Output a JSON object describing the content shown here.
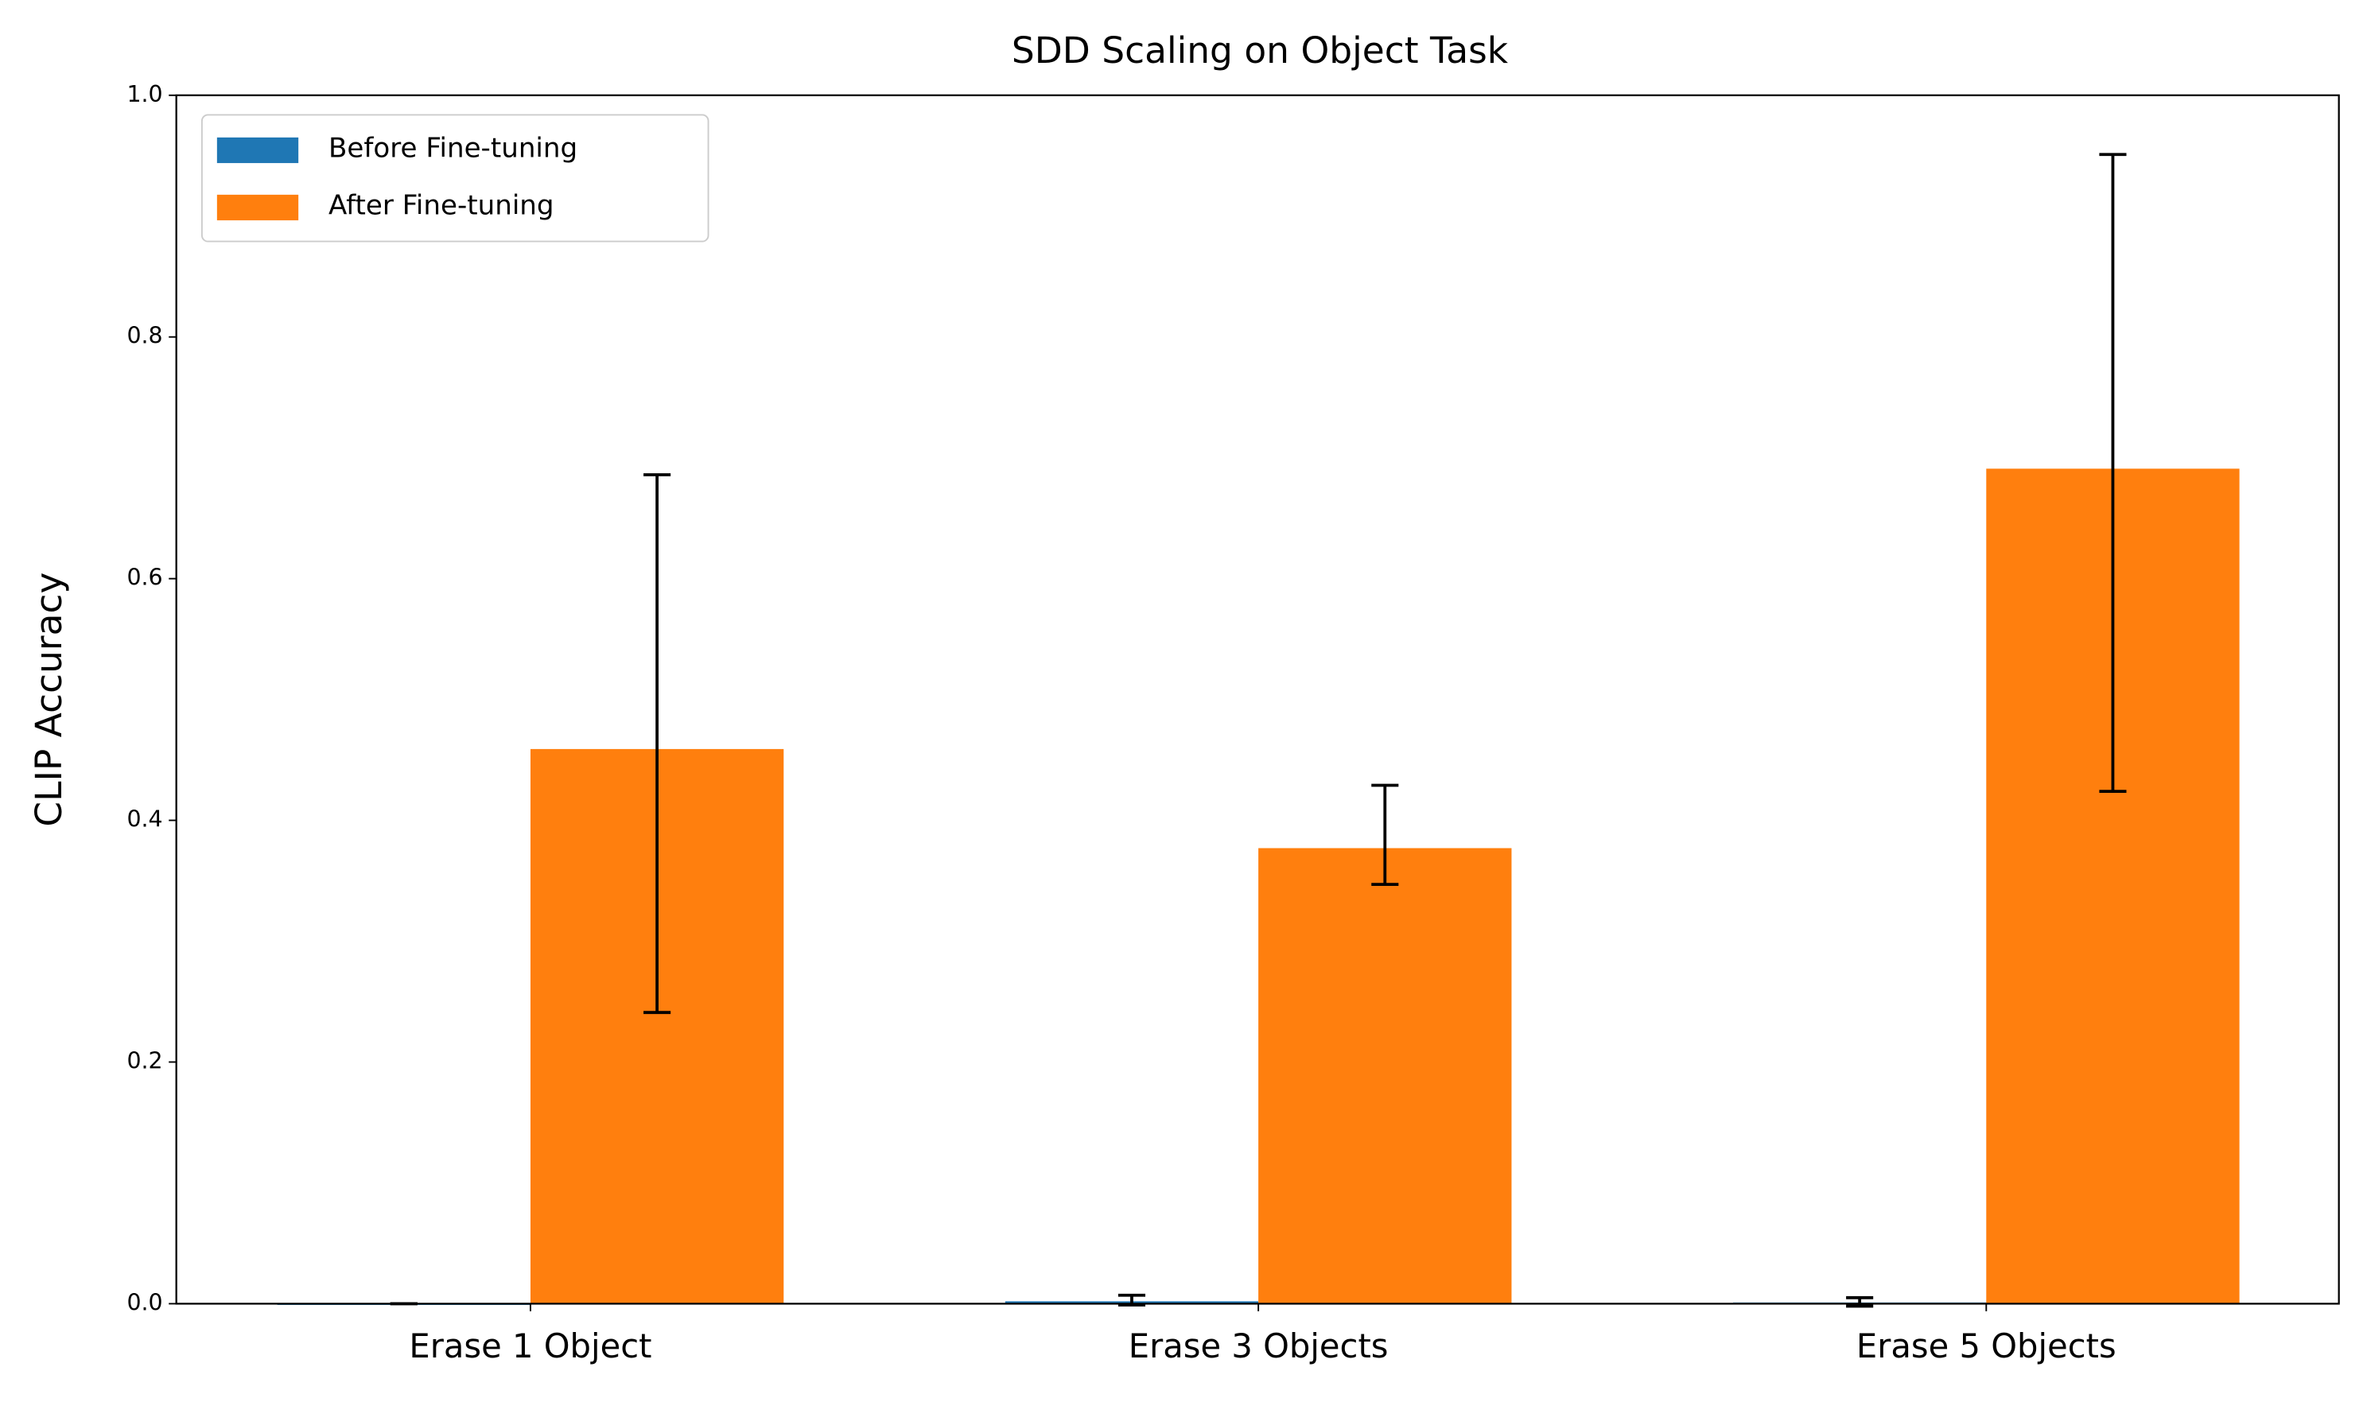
{
  "chart_data": {
    "type": "bar",
    "title": "SDD Scaling on Object Task",
    "y_label": "CLIP Accuracy",
    "categories": [
      "Erase 1 Object",
      "Erase 3 Objects",
      "Erase 5 Objects"
    ],
    "series": [
      {
        "name": "Before Fine-tuning",
        "color": "#1f77b4",
        "values": [
          0,
          0.002,
          0.001
        ],
        "err_minus": [
          0,
          0.003,
          0.003
        ],
        "err_plus": [
          0,
          0.005,
          0.004
        ]
      },
      {
        "name": "After Fine-tuning",
        "color": "#ff7f0e",
        "values": [
          0.459,
          0.377,
          0.691
        ],
        "err_minus": [
          0.218,
          0.03,
          0.267
        ],
        "err_plus": [
          0.227,
          0.052,
          0.26
        ]
      }
    ],
    "ylim": [
      0,
      1
    ],
    "yticks": [
      {
        "value": 0,
        "label": "0.0"
      },
      0.2,
      0.4,
      0.6,
      0.8,
      {
        "value": 1,
        "label": "1.0"
      }
    ],
    "legend": "upper left"
  }
}
